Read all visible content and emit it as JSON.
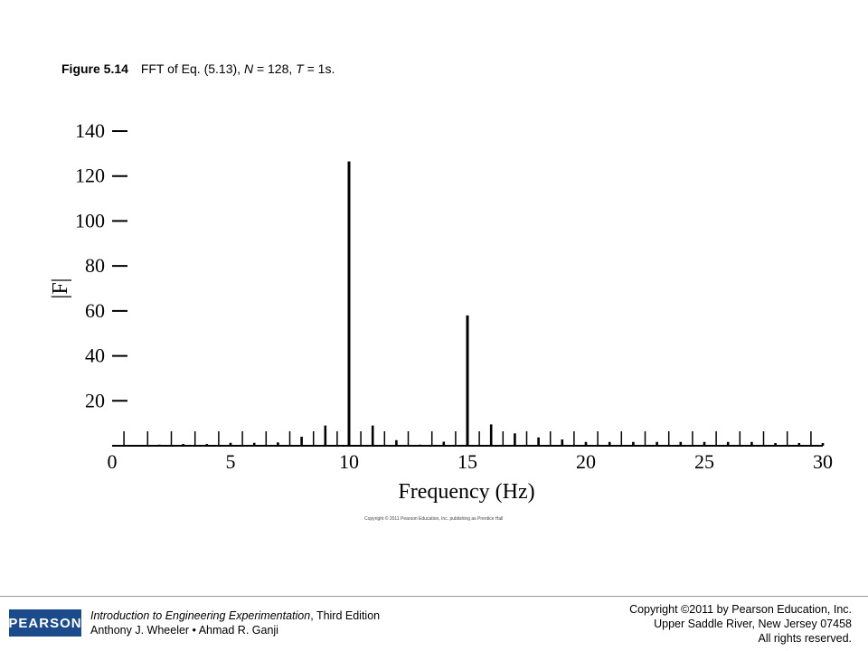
{
  "caption": {
    "label": "Figure 5.14",
    "text_prefix": "FFT of Eq. (5.13), ",
    "n_var": "N",
    "n_value": " = 128, ",
    "t_var": "T",
    "t_value": " = 1s."
  },
  "chart_data": {
    "type": "bar",
    "title": "",
    "xlabel": "Frequency (Hz)",
    "ylabel": "|F|",
    "xlim": [
      0,
      30
    ],
    "ylim": [
      0,
      140
    ],
    "xticks": [
      0,
      5,
      10,
      15,
      20,
      25,
      30
    ],
    "yticks": [
      20,
      40,
      60,
      80,
      100,
      120,
      140
    ],
    "grid": false,
    "x": [
      0,
      1,
      2,
      3,
      4,
      5,
      6,
      7,
      8,
      9,
      10,
      11,
      12,
      13,
      14,
      15,
      16,
      17,
      18,
      19,
      20,
      21,
      22,
      23,
      24,
      25,
      26,
      27,
      28,
      29,
      30
    ],
    "values": [
      0,
      0.3,
      0.5,
      0.8,
      0.8,
      1.3,
      1.3,
      1.5,
      4,
      9,
      126.5,
      9,
      2.5,
      0.5,
      1.8,
      58,
      9.5,
      5.5,
      3.7,
      2.8,
      1.7,
      1.7,
      1.7,
      1.7,
      1.7,
      1.7,
      1.7,
      1.7,
      1.2,
      1.2,
      1.2
    ]
  },
  "small_copyright": "Copyright © 2011 Pearson Education, Inc. publishing as Prentice Hall",
  "footer": {
    "logo": "PEARSON",
    "book_title": "Introduction to Engineering Experimentation",
    "edition": ", Third Edition",
    "authors": "Anthony J. Wheeler • Ahmad R. Ganji",
    "copyright_line1": "Copyright ©2011 by Pearson Education, Inc.",
    "copyright_line2": "Upper Saddle River, New Jersey 07458",
    "copyright_line3": "All rights reserved."
  }
}
